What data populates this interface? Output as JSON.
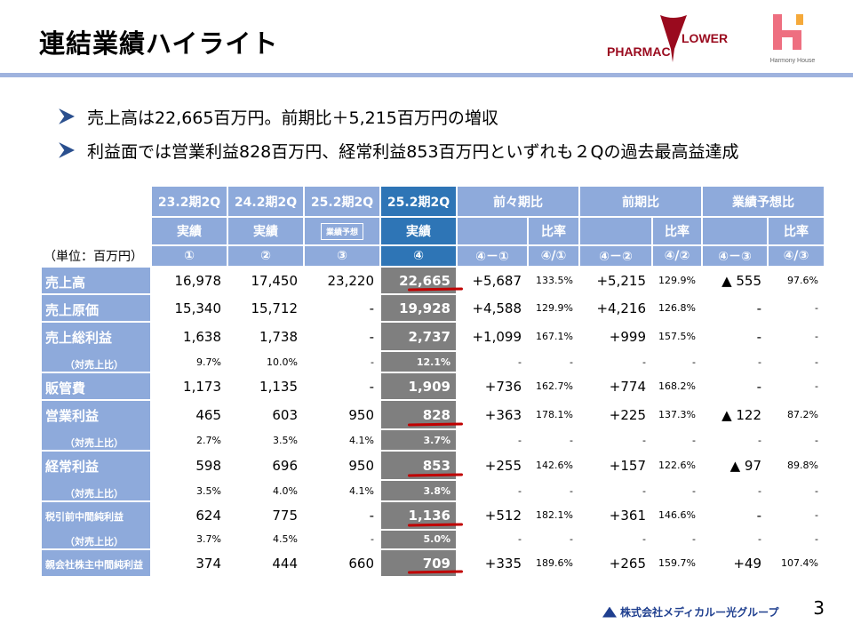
{
  "title": "連結業績ハイライト",
  "logos": {
    "pharmac": "PHARMAC FLOWER",
    "harmony": "Harmony House",
    "footer": "株式会社メディカルー光グループ"
  },
  "bullets": [
    "売上高は22,665百万円。前期比＋5,215百万円の増収",
    "利益面では営業利益828百万円、経常利益853百万円といずれも２Qの過去最高益達成"
  ],
  "table": {
    "unit": "（単位：百万円）",
    "periods": [
      "23.2期2Q",
      "24.2期2Q",
      "25.2期2Q",
      "25.2期2Q"
    ],
    "types": [
      "実績",
      "実績",
      "業績予想",
      "実績"
    ],
    "groups": [
      "前々期比",
      "前期比",
      "業績予想比"
    ],
    "ratio": "比率",
    "markers": [
      "①",
      "②",
      "③",
      "④",
      "④－①",
      "④/①",
      "④－②",
      "④/②",
      "④－③",
      "④/③"
    ],
    "rows": [
      {
        "label": "売上高",
        "values": [
          "16,978",
          "17,450",
          "23,220",
          "22,665",
          "+5,687",
          "133.5%",
          "+5,215",
          "129.9%",
          "▲ 555",
          "97.6%"
        ],
        "underline": true
      },
      {
        "label": "売上原価",
        "values": [
          "15,340",
          "15,712",
          "-",
          "19,928",
          "+4,588",
          "129.9%",
          "+4,216",
          "126.8%",
          "-",
          "-"
        ]
      },
      {
        "label": "売上総利益",
        "values": [
          "1,638",
          "1,738",
          "-",
          "2,737",
          "+1,099",
          "167.1%",
          "+999",
          "157.5%",
          "-",
          "-"
        ],
        "sub": {
          "label": "（対売上比）",
          "values": [
            "9.7%",
            "10.0%",
            "-",
            "12.1%",
            "-",
            "-",
            "-",
            "-",
            "-",
            "-"
          ]
        }
      },
      {
        "label": "販管費",
        "values": [
          "1,173",
          "1,135",
          "-",
          "1,909",
          "+736",
          "162.7%",
          "+774",
          "168.2%",
          "-",
          "-"
        ]
      },
      {
        "label": "営業利益",
        "values": [
          "465",
          "603",
          "950",
          "828",
          "+363",
          "178.1%",
          "+225",
          "137.3%",
          "▲ 122",
          "87.2%"
        ],
        "underline": true,
        "sub": {
          "label": "（対売上比）",
          "values": [
            "2.7%",
            "3.5%",
            "4.1%",
            "3.7%",
            "-",
            "-",
            "-",
            "-",
            "-",
            "-"
          ]
        }
      },
      {
        "label": "経常利益",
        "values": [
          "598",
          "696",
          "950",
          "853",
          "+255",
          "142.6%",
          "+157",
          "122.6%",
          "▲ 97",
          "89.8%"
        ],
        "underline": true,
        "sub": {
          "label": "（対売上比）",
          "values": [
            "3.5%",
            "4.0%",
            "4.1%",
            "3.8%",
            "-",
            "-",
            "-",
            "-",
            "-",
            "-"
          ]
        }
      },
      {
        "label": "税引前中間純利益",
        "values": [
          "624",
          "775",
          "-",
          "1,136",
          "+512",
          "182.1%",
          "+361",
          "146.6%",
          "-",
          "-"
        ],
        "underline": true,
        "sub": {
          "label": "（対売上比）",
          "values": [
            "3.7%",
            "4.5%",
            "-",
            "5.0%",
            "-",
            "-",
            "-",
            "-",
            "-",
            "-"
          ]
        }
      },
      {
        "label": "親会社株主中間純利益",
        "values": [
          "374",
          "444",
          "660",
          "709",
          "+335",
          "189.6%",
          "+265",
          "159.7%",
          "+49",
          "107.4%"
        ],
        "underline": true
      }
    ]
  },
  "page_number": "3"
}
